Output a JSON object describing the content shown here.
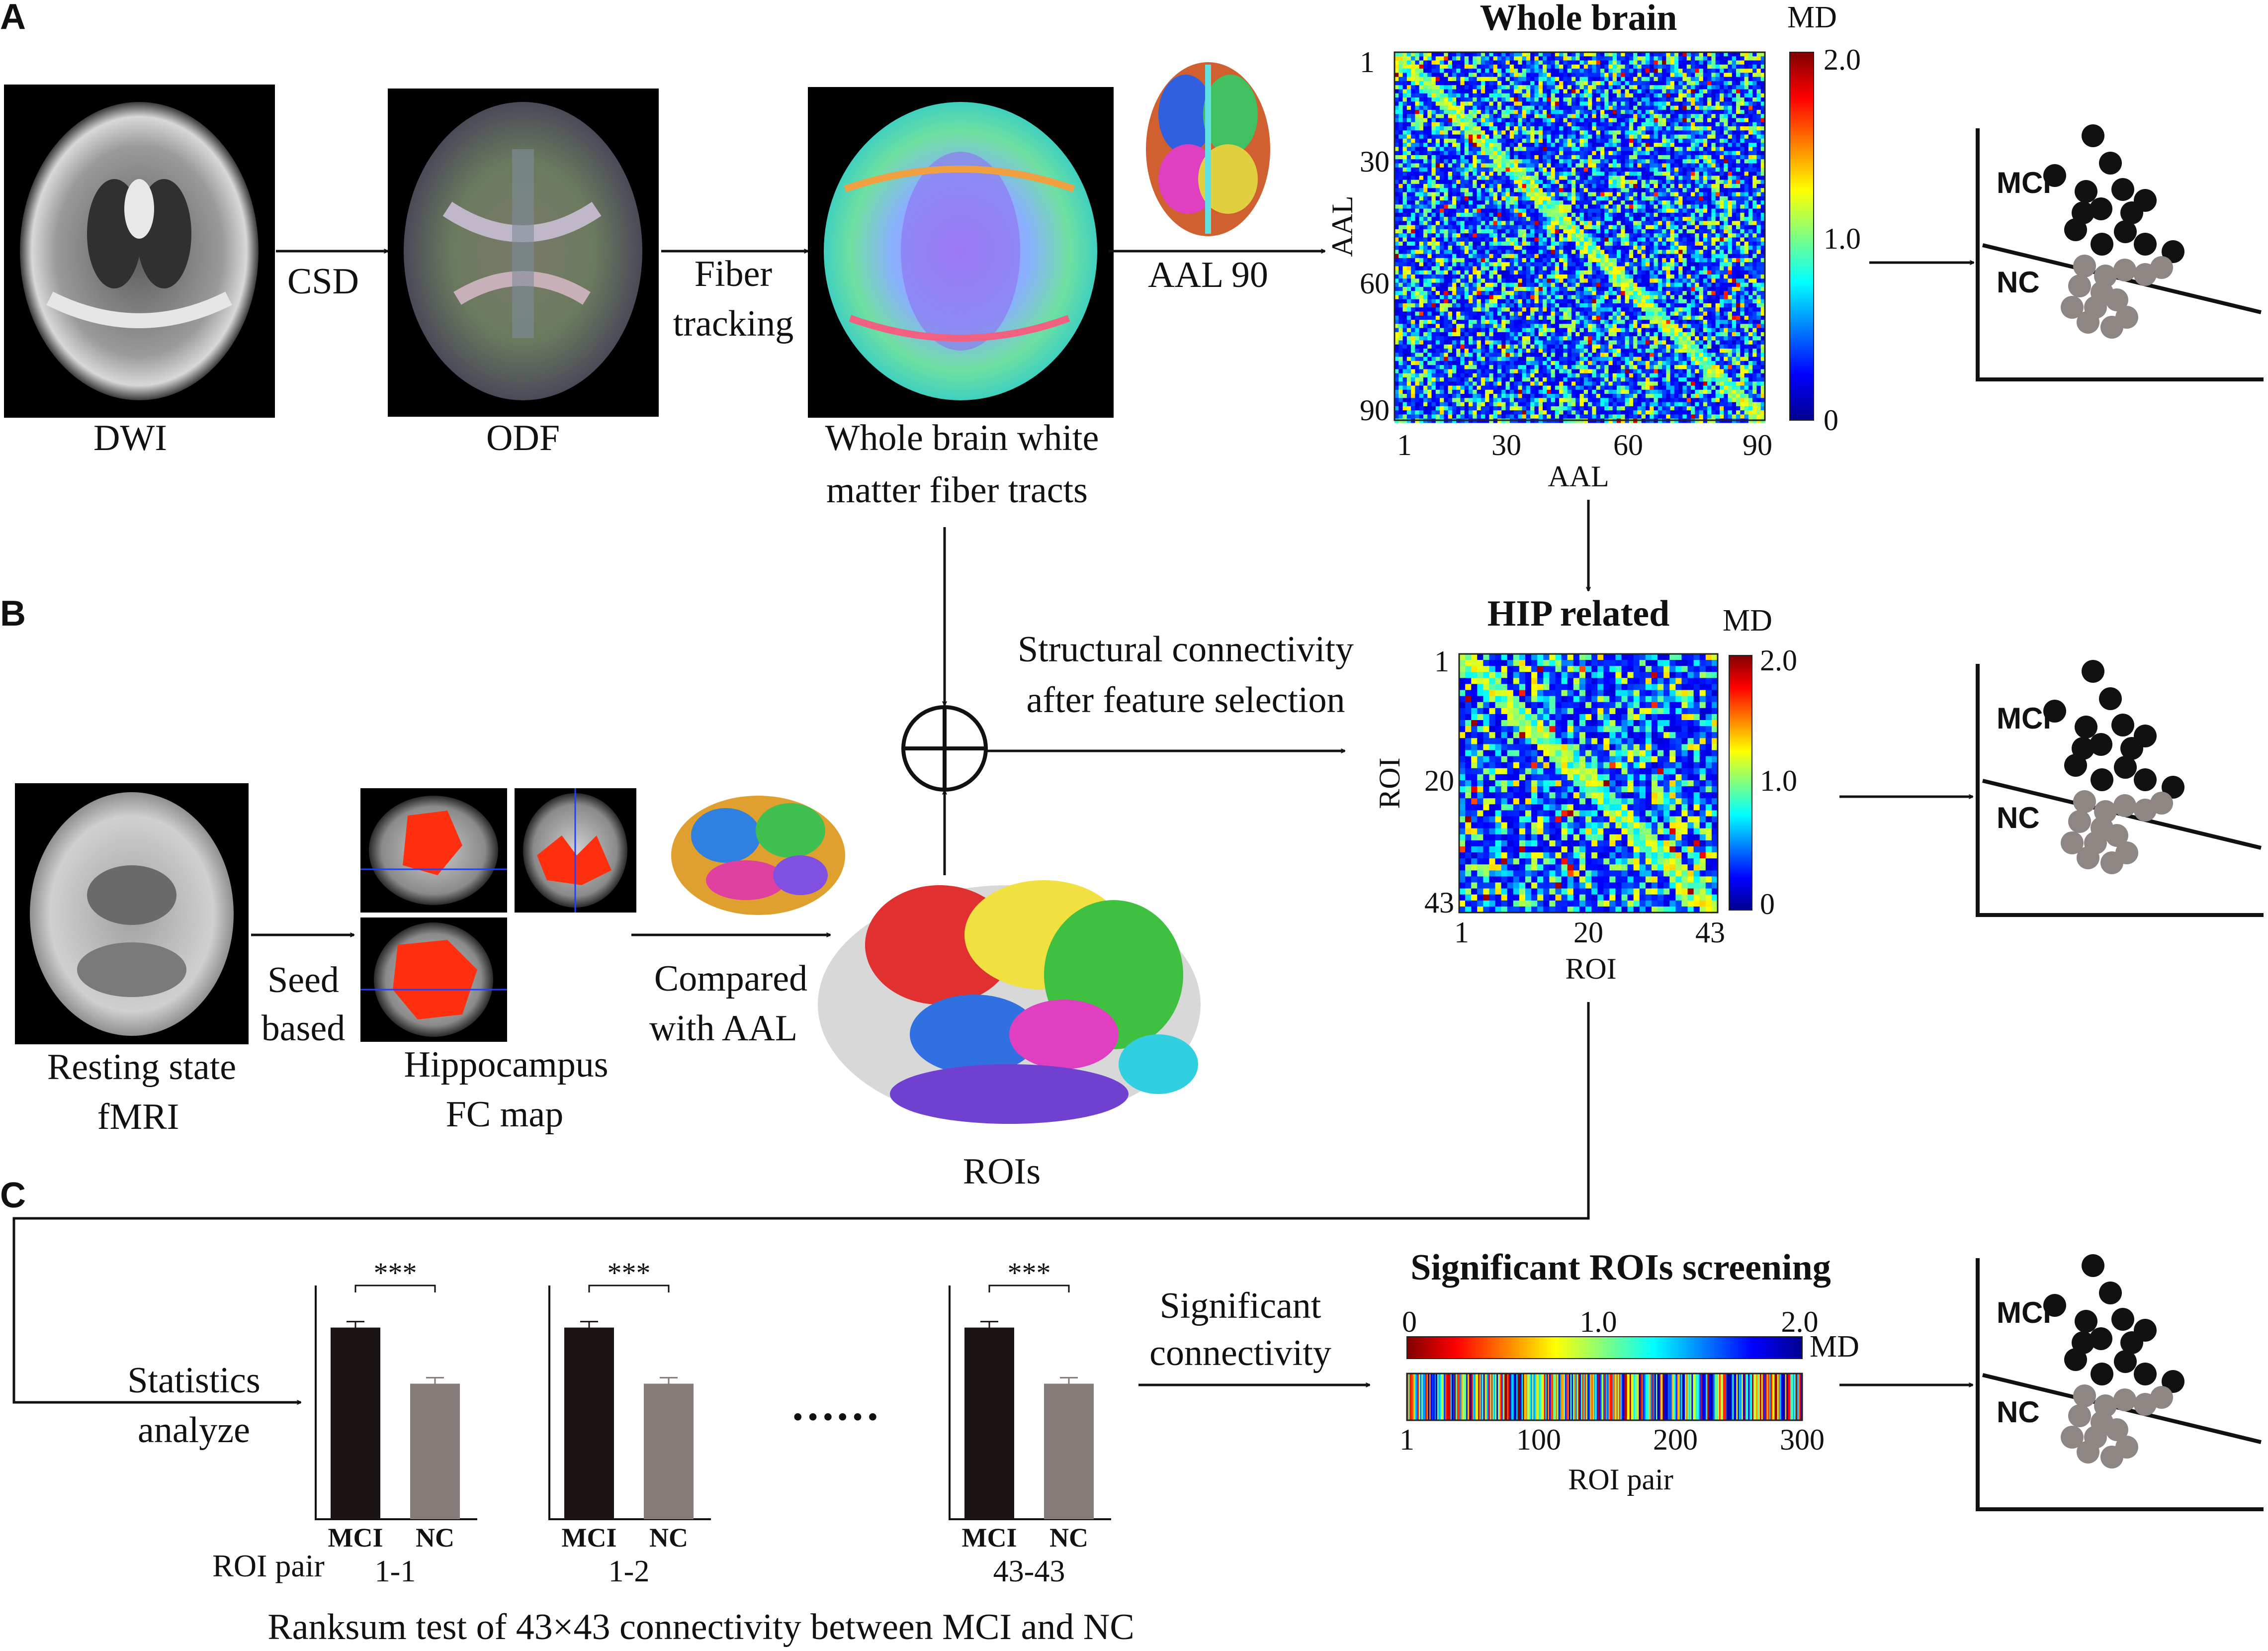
{
  "panels": {
    "a": "A",
    "b": "B",
    "c": "C"
  },
  "pipeline_a": {
    "dwi": "DWI",
    "odf": "ODF",
    "csd": "CSD",
    "fiber_line1": "Fiber",
    "fiber_line2": "tracking",
    "tracts_line1": "Whole brain white",
    "tracts_line2": "matter fiber tracts",
    "aal90": "AAL 90"
  },
  "whole_brain_matrix": {
    "title": "Whole brain",
    "x_label": "AAL",
    "y_label": "AAL",
    "colorbar_title": "MD",
    "x_ticks": [
      "1",
      "30",
      "60",
      "90"
    ],
    "y_ticks": [
      "1",
      "30",
      "60",
      "90"
    ],
    "colorbar_ticks": [
      "2.0",
      "1.0",
      "0"
    ]
  },
  "hip_matrix": {
    "title": "HIP related",
    "x_label": "ROI",
    "y_label": "ROI",
    "colorbar_title": "MD",
    "x_ticks": [
      "1",
      "20",
      "43"
    ],
    "y_ticks": [
      "1",
      "20",
      "43"
    ],
    "colorbar_ticks": [
      "2.0",
      "1.0",
      "0"
    ]
  },
  "pipeline_b": {
    "sc_line1": "Structural connectivity",
    "sc_line2": "after feature selection",
    "rs_line1": "Resting state",
    "rs_line2": "fMRI",
    "seed_line1": "Seed",
    "seed_line2": "based",
    "hip_line1": "Hippocampus",
    "hip_line2": "FC map",
    "cmp_line1": "Compared",
    "cmp_line2": "with AAL",
    "rois": "ROIs"
  },
  "classifier": {
    "mci": "MCI",
    "nc": "NC"
  },
  "pipeline_c": {
    "stat_line1": "Statistics",
    "stat_line2": "analyze",
    "roi_pair_label": "ROI pair",
    "ellipsis": "……",
    "sig_line1": "Significant",
    "sig_line2": "connectivity",
    "screening_title": "Significant ROIs screening",
    "screening_colorbar_title": "MD",
    "screening_top_ticks": [
      "0",
      "1.0",
      "2.0"
    ],
    "screening_bottom_ticks": [
      "1",
      "100",
      "200",
      "300"
    ],
    "screening_xlabel": "ROI pair",
    "caption": "Ranksum test of 43×43 connectivity between MCI and NC"
  },
  "chart_data": [
    {
      "type": "bar",
      "categories": [
        "MCI",
        "NC"
      ],
      "values": [
        0.82,
        0.58
      ],
      "ylim": [
        0,
        1
      ],
      "annotation": "***",
      "pair": "1-1"
    },
    {
      "type": "bar",
      "categories": [
        "MCI",
        "NC"
      ],
      "values": [
        0.82,
        0.58
      ],
      "ylim": [
        0,
        1
      ],
      "annotation": "***",
      "pair": "1-2"
    },
    {
      "type": "bar",
      "categories": [
        "MCI",
        "NC"
      ],
      "values": [
        0.82,
        0.58
      ],
      "ylim": [
        0,
        1
      ],
      "annotation": "***",
      "pair": "43-43"
    }
  ],
  "colors": {
    "mci_bar": "#1a1414",
    "nc_bar": "#857b78",
    "mci_dot": "#111111",
    "nc_dot": "#8e8683",
    "jet_low": "#00008f",
    "jet_high": "#800000"
  }
}
